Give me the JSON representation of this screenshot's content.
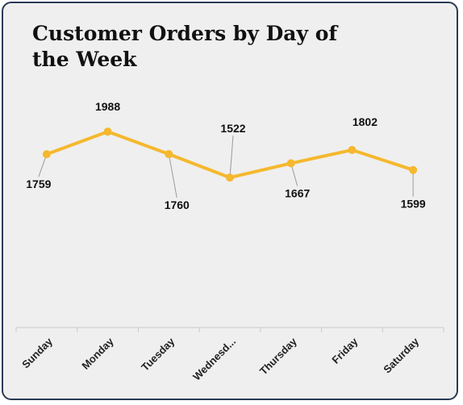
{
  "chart_data": {
    "type": "line",
    "title": "Customer Orders by Day of the Week",
    "categories": [
      "Sunday",
      "Monday",
      "Tuesday",
      "Wednesd...",
      "Thursday",
      "Friday",
      "Saturday"
    ],
    "series": [
      {
        "values": [
          1759,
          1988,
          1760,
          1522,
          1667,
          1802,
          1599
        ]
      }
    ],
    "data_labels": [
      "1759",
      "1988",
      "1760",
      "1522",
      "1667",
      "1802",
      "1599"
    ],
    "ylim": [
      0,
      2800
    ],
    "grid": false,
    "legend": "none",
    "line_color": "#f5b82e",
    "background": "#efefef"
  }
}
